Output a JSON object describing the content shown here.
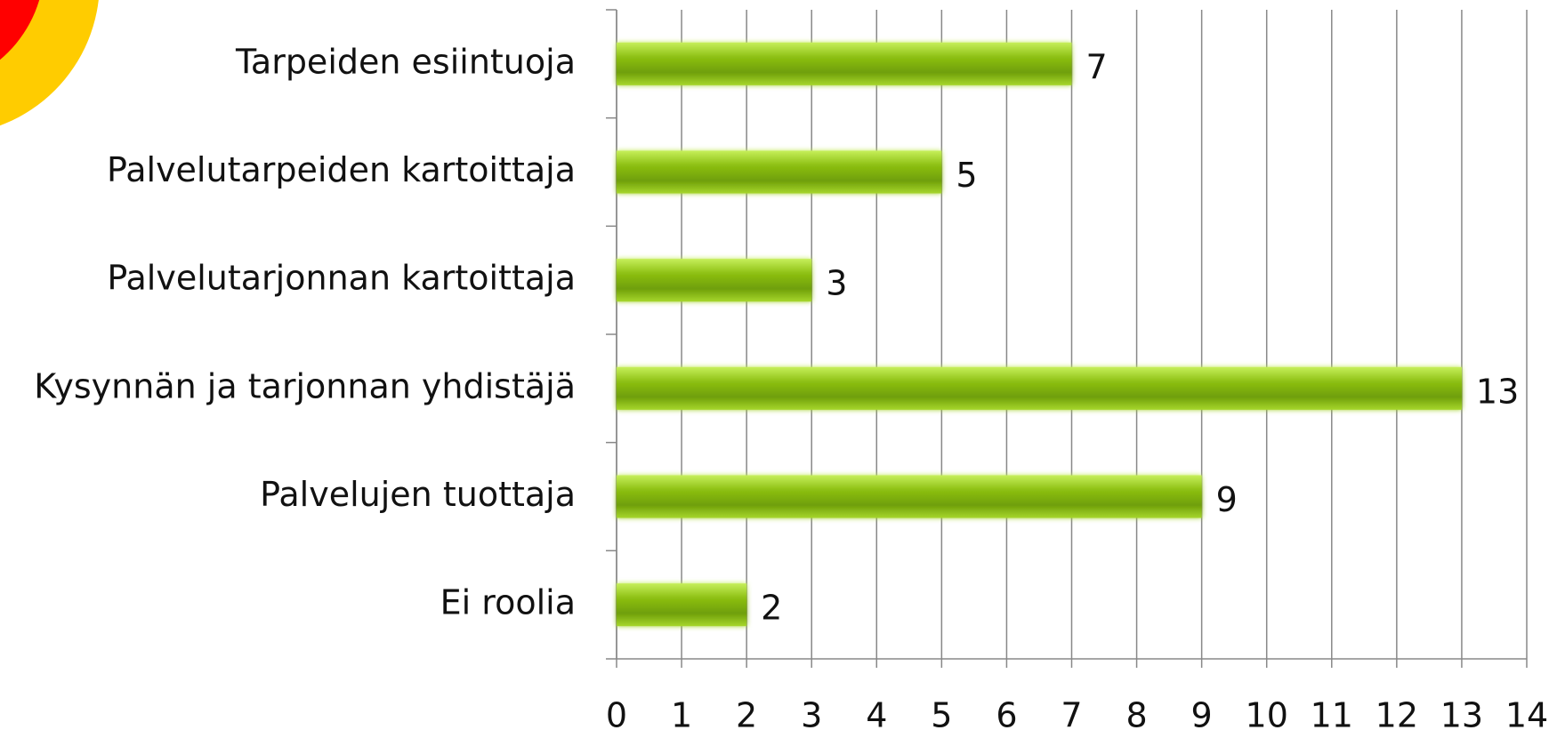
{
  "chart_data": {
    "type": "bar",
    "orientation": "horizontal",
    "categories": [
      "Tarpeiden esiintuoja",
      "Palvelutarpeiden kartoittaja",
      "Palvelutarjonnan kartoittaja",
      "Kysynnän ja tarjonnan yhdistäjä",
      "Palvelujen tuottaja",
      "Ei roolia"
    ],
    "values": [
      7,
      5,
      3,
      13,
      9,
      2
    ],
    "color": "#7fb20a",
    "xlim": [
      0,
      14
    ],
    "xticks": [
      0,
      1,
      2,
      3,
      4,
      5,
      6,
      7,
      8,
      9,
      10,
      11,
      12,
      13,
      14
    ],
    "grid": true
  }
}
